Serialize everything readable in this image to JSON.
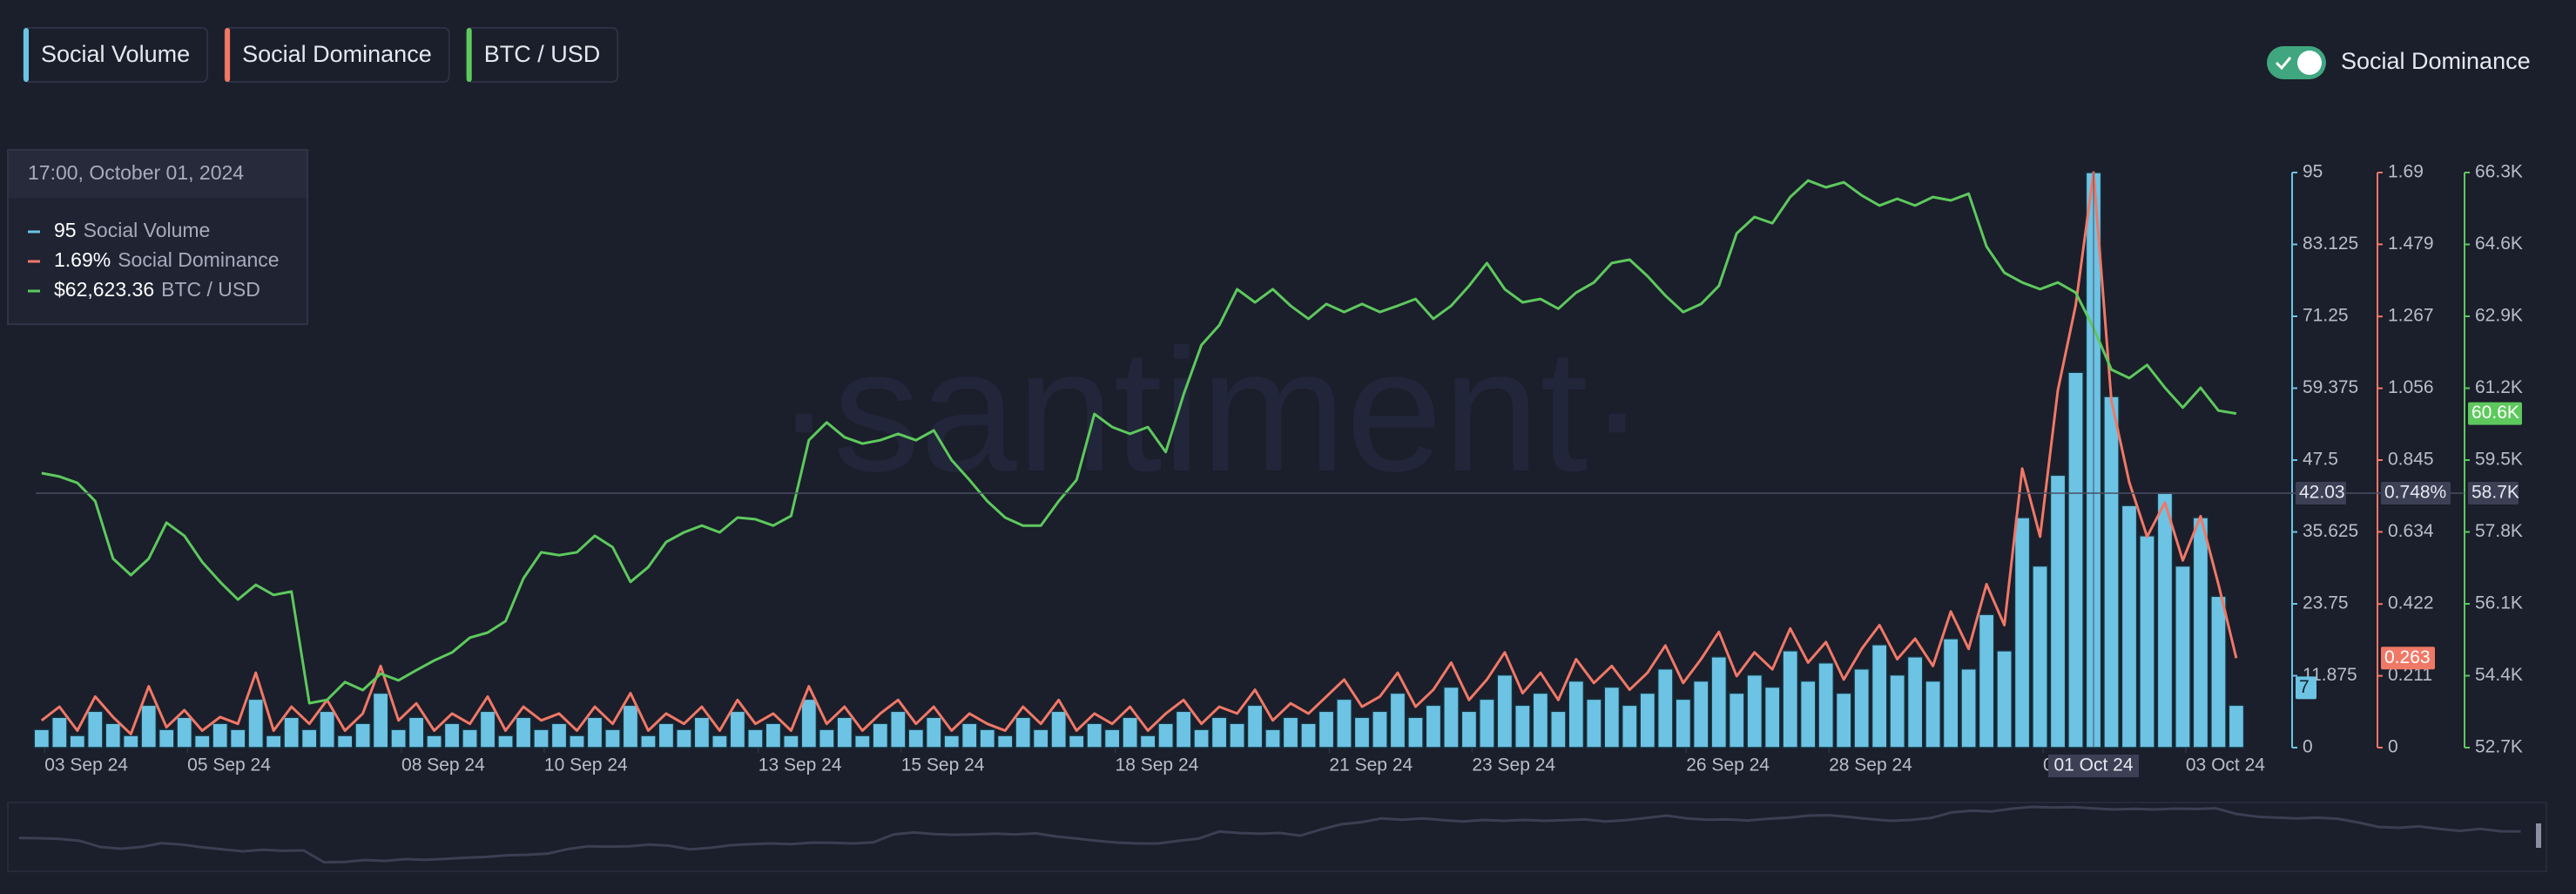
{
  "chart_data": {
    "type": "combo",
    "watermark": "·santiment·",
    "toggle": {
      "label": "Social Dominance",
      "on": true
    },
    "xlim": [
      "2024-09-02T21:00",
      "2024-10-03T22:00"
    ],
    "xticks": [
      {
        "value": "2024-09-03T00:00",
        "label": "03 Sep 24"
      },
      {
        "value": "2024-09-05T00:00",
        "label": "05 Sep 24"
      },
      {
        "value": "2024-09-08T00:00",
        "label": "08 Sep 24"
      },
      {
        "value": "2024-09-10T00:00",
        "label": "10 Sep 24"
      },
      {
        "value": "2024-09-13T00:00",
        "label": "13 Sep 24"
      },
      {
        "value": "2024-09-15T00:00",
        "label": "15 Sep 24"
      },
      {
        "value": "2024-09-18T00:00",
        "label": "18 Sep 24"
      },
      {
        "value": "2024-09-21T00:00",
        "label": "21 Sep 24"
      },
      {
        "value": "2024-09-23T00:00",
        "label": "23 Sep 24"
      },
      {
        "value": "2024-09-26T00:00",
        "label": "26 Sep 24"
      },
      {
        "value": "2024-09-28T00:00",
        "label": "28 Sep 24"
      },
      {
        "value": "2024-10-01T00:00",
        "label": "01 Oct 24"
      },
      {
        "value": "2024-10-03T00:00",
        "label": "03 Oct 24"
      }
    ],
    "ylim": [
      0,
      95
    ],
    "yticks": [
      0,
      11.875,
      23.75,
      35.625,
      47.5,
      59.375,
      71.25,
      83.125,
      95
    ],
    "y2lim": [
      0,
      1.69
    ],
    "y2ticks": [
      0,
      0.211,
      0.422,
      0.634,
      0.845,
      1.056,
      1.267,
      1.479,
      1.69
    ],
    "y3lim": [
      52700,
      66300
    ],
    "y3ticks": [
      {
        "value": 52700,
        "label": "52.7K"
      },
      {
        "value": 54400,
        "label": "54.4K"
      },
      {
        "value": 56100,
        "label": "56.1K"
      },
      {
        "value": 57800,
        "label": "57.8K"
      },
      {
        "value": 59500,
        "label": "59.5K"
      },
      {
        "value": 61200,
        "label": "61.2K"
      },
      {
        "value": 62900,
        "label": "62.9K"
      },
      {
        "value": 64600,
        "label": "64.6K"
      },
      {
        "value": 66300,
        "label": "66.3K"
      }
    ],
    "grid": false,
    "crosshair": {
      "y": 42.03,
      "y2_label": "0.748%",
      "y3_label": "58.7K",
      "x_label": "01 Oct 24"
    },
    "tooltip": {
      "title": "17:00, October 01, 2024",
      "entries": [
        "95",
        "1.69%",
        "$62,623.36"
      ]
    },
    "x": [
      "2024-09-02T23:00",
      "2024-09-03T05:00",
      "2024-09-03T11:00",
      "2024-09-03T17:00",
      "2024-09-03T23:00",
      "2024-09-04T05:00",
      "2024-09-04T11:00",
      "2024-09-04T17:00",
      "2024-09-04T23:00",
      "2024-09-05T05:00",
      "2024-09-05T11:00",
      "2024-09-05T17:00",
      "2024-09-05T23:00",
      "2024-09-06T05:00",
      "2024-09-06T11:00",
      "2024-09-06T17:00",
      "2024-09-06T23:00",
      "2024-09-07T05:00",
      "2024-09-07T11:00",
      "2024-09-07T17:00",
      "2024-09-07T23:00",
      "2024-09-08T05:00",
      "2024-09-08T11:00",
      "2024-09-08T17:00",
      "2024-09-08T23:00",
      "2024-09-09T05:00",
      "2024-09-09T11:00",
      "2024-09-09T17:00",
      "2024-09-09T23:00",
      "2024-09-10T05:00",
      "2024-09-10T11:00",
      "2024-09-10T17:00",
      "2024-09-10T23:00",
      "2024-09-11T05:00",
      "2024-09-11T11:00",
      "2024-09-11T17:00",
      "2024-09-11T23:00",
      "2024-09-12T05:00",
      "2024-09-12T11:00",
      "2024-09-12T17:00",
      "2024-09-12T23:00",
      "2024-09-13T05:00",
      "2024-09-13T11:00",
      "2024-09-13T17:00",
      "2024-09-13T23:00",
      "2024-09-14T05:00",
      "2024-09-14T11:00",
      "2024-09-14T17:00",
      "2024-09-14T23:00",
      "2024-09-15T05:00",
      "2024-09-15T11:00",
      "2024-09-15T17:00",
      "2024-09-15T23:00",
      "2024-09-16T05:00",
      "2024-09-16T11:00",
      "2024-09-16T17:00",
      "2024-09-16T23:00",
      "2024-09-17T05:00",
      "2024-09-17T11:00",
      "2024-09-17T17:00",
      "2024-09-17T23:00",
      "2024-09-18T05:00",
      "2024-09-18T11:00",
      "2024-09-18T17:00",
      "2024-09-18T23:00",
      "2024-09-19T05:00",
      "2024-09-19T11:00",
      "2024-09-19T17:00",
      "2024-09-19T23:00",
      "2024-09-20T05:00",
      "2024-09-20T11:00",
      "2024-09-20T17:00",
      "2024-09-20T23:00",
      "2024-09-21T05:00",
      "2024-09-21T11:00",
      "2024-09-21T17:00",
      "2024-09-21T23:00",
      "2024-09-22T05:00",
      "2024-09-22T11:00",
      "2024-09-22T17:00",
      "2024-09-22T23:00",
      "2024-09-23T05:00",
      "2024-09-23T11:00",
      "2024-09-23T17:00",
      "2024-09-23T23:00",
      "2024-09-24T05:00",
      "2024-09-24T11:00",
      "2024-09-24T17:00",
      "2024-09-24T23:00",
      "2024-09-25T05:00",
      "2024-09-25T11:00",
      "2024-09-25T17:00",
      "2024-09-25T23:00",
      "2024-09-26T05:00",
      "2024-09-26T11:00",
      "2024-09-26T17:00",
      "2024-09-26T23:00",
      "2024-09-27T05:00",
      "2024-09-27T11:00",
      "2024-09-27T17:00",
      "2024-09-27T23:00",
      "2024-09-28T05:00",
      "2024-09-28T11:00",
      "2024-09-28T17:00",
      "2024-09-28T23:00",
      "2024-09-29T05:00",
      "2024-09-29T11:00",
      "2024-09-29T17:00",
      "2024-09-29T23:00",
      "2024-09-30T05:00",
      "2024-09-30T11:00",
      "2024-09-30T17:00",
      "2024-09-30T23:00",
      "2024-10-01T05:00",
      "2024-10-01T11:00",
      "2024-10-01T17:00",
      "2024-10-01T23:00",
      "2024-10-02T05:00",
      "2024-10-02T11:00",
      "2024-10-02T17:00",
      "2024-10-02T23:00",
      "2024-10-03T05:00",
      "2024-10-03T11:00",
      "2024-10-03T17:00"
    ],
    "series": [
      {
        "name": "Social Volume",
        "type": "bar",
        "axis": "y",
        "color": "#6cc3e4",
        "values": [
          3,
          5,
          2,
          6,
          4,
          2,
          7,
          3,
          5,
          2,
          4,
          3,
          8,
          2,
          5,
          3,
          6,
          2,
          4,
          9,
          3,
          5,
          2,
          4,
          3,
          6,
          2,
          5,
          3,
          4,
          2,
          5,
          3,
          7,
          2,
          4,
          3,
          5,
          2,
          6,
          3,
          4,
          2,
          8,
          3,
          5,
          2,
          4,
          6,
          3,
          5,
          2,
          4,
          3,
          2,
          5,
          3,
          6,
          2,
          4,
          3,
          5,
          2,
          4,
          6,
          3,
          5,
          4,
          7,
          3,
          5,
          4,
          6,
          8,
          5,
          6,
          9,
          5,
          7,
          10,
          6,
          8,
          12,
          7,
          9,
          6,
          11,
          8,
          10,
          7,
          9,
          13,
          8,
          11,
          15,
          9,
          12,
          10,
          16,
          11,
          14,
          9,
          13,
          17,
          12,
          15,
          11,
          18,
          13,
          22,
          16,
          38,
          30,
          45,
          62,
          95,
          58,
          40,
          35,
          42,
          30,
          38,
          25,
          7
        ]
      },
      {
        "name": "Social Dominance",
        "type": "line",
        "axis": "y2",
        "color": "#f07866",
        "values": [
          0.08,
          0.12,
          0.05,
          0.15,
          0.09,
          0.04,
          0.18,
          0.06,
          0.11,
          0.05,
          0.09,
          0.07,
          0.22,
          0.05,
          0.12,
          0.07,
          0.14,
          0.05,
          0.1,
          0.24,
          0.08,
          0.13,
          0.05,
          0.1,
          0.07,
          0.15,
          0.05,
          0.12,
          0.08,
          0.1,
          0.05,
          0.12,
          0.07,
          0.16,
          0.05,
          0.1,
          0.07,
          0.12,
          0.05,
          0.14,
          0.07,
          0.1,
          0.05,
          0.18,
          0.07,
          0.12,
          0.05,
          0.1,
          0.14,
          0.07,
          0.12,
          0.05,
          0.1,
          0.07,
          0.05,
          0.12,
          0.07,
          0.14,
          0.05,
          0.1,
          0.07,
          0.12,
          0.05,
          0.1,
          0.14,
          0.07,
          0.12,
          0.1,
          0.17,
          0.08,
          0.13,
          0.1,
          0.15,
          0.2,
          0.12,
          0.15,
          0.22,
          0.12,
          0.17,
          0.25,
          0.14,
          0.2,
          0.28,
          0.16,
          0.22,
          0.14,
          0.26,
          0.19,
          0.24,
          0.17,
          0.22,
          0.3,
          0.19,
          0.26,
          0.34,
          0.21,
          0.28,
          0.23,
          0.35,
          0.25,
          0.31,
          0.2,
          0.29,
          0.36,
          0.26,
          0.32,
          0.24,
          0.4,
          0.29,
          0.48,
          0.36,
          0.82,
          0.62,
          1.05,
          1.3,
          1.69,
          1.02,
          0.78,
          0.62,
          0.72,
          0.55,
          0.68,
          0.48,
          0.263
        ]
      },
      {
        "name": "BTC / USD",
        "type": "line",
        "axis": "y3",
        "color": "#5dc95d",
        "last_label": "60.6K",
        "values": [
          59190,
          59110,
          58960,
          58530,
          57170,
          56780,
          57170,
          58020,
          57710,
          57090,
          56620,
          56200,
          56550,
          56310,
          56390,
          53750,
          53830,
          54250,
          54060,
          54450,
          54290,
          54530,
          54760,
          54950,
          55300,
          55420,
          55690,
          56700,
          57320,
          57250,
          57320,
          57710,
          57440,
          56620,
          56970,
          57560,
          57790,
          57950,
          57790,
          58140,
          58100,
          57950,
          58180,
          59970,
          60390,
          60040,
          59890,
          59970,
          60120,
          59970,
          60200,
          59500,
          59030,
          58530,
          58140,
          57950,
          57950,
          58530,
          59030,
          60590,
          60280,
          60120,
          60280,
          59690,
          61050,
          62220,
          62690,
          63540,
          63230,
          63540,
          63150,
          62840,
          63190,
          63000,
          63190,
          63000,
          63150,
          63310,
          62840,
          63150,
          63620,
          64160,
          63540,
          63230,
          63310,
          63080,
          63460,
          63700,
          64160,
          64240,
          63850,
          63390,
          63000,
          63190,
          63620,
          64860,
          65250,
          65100,
          65720,
          66110,
          65950,
          66070,
          65760,
          65520,
          65680,
          65520,
          65720,
          65640,
          65800,
          64550,
          63930,
          63700,
          63540,
          63700,
          63460,
          62623.36,
          61640,
          61440,
          61750,
          61210,
          60740,
          61210,
          60670,
          60600
        ]
      }
    ]
  }
}
